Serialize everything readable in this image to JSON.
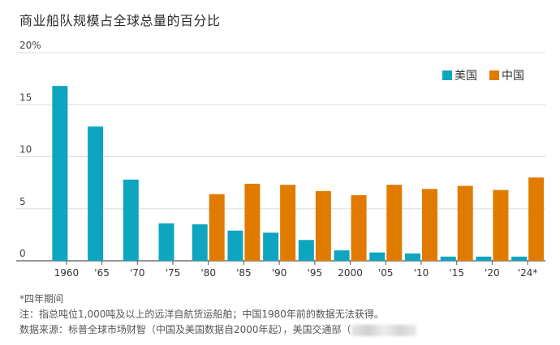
{
  "title": "商业船队规模占全球总量的百分比",
  "chart_data": {
    "type": "bar",
    "title": "商业船队规模占全球总量的百分比",
    "categories": [
      "1960",
      "'65",
      "'70",
      "'75",
      "'80",
      "'85",
      "'90",
      "'95",
      "2000",
      "'05",
      "'10",
      "'15",
      "'20",
      "'24*"
    ],
    "series": [
      {
        "name": "美国",
        "color": "#0ea5c0",
        "values": [
          16.8,
          12.9,
          7.8,
          3.6,
          3.5,
          2.9,
          2.7,
          2.0,
          1.0,
          0.8,
          0.7,
          0.4,
          0.4,
          0.4
        ]
      },
      {
        "name": "中国",
        "color": "#e07b00",
        "values": [
          null,
          null,
          null,
          null,
          6.4,
          7.4,
          7.3,
          6.7,
          6.3,
          7.3,
          6.9,
          7.2,
          6.8,
          8.0
        ]
      }
    ],
    "ylim": [
      0,
      20
    ],
    "yticks": [
      0,
      5,
      10,
      15,
      20
    ],
    "ytick_labels": [
      "0",
      "5",
      "10",
      "15",
      "20%"
    ],
    "grid": true,
    "legend": "top-right"
  },
  "notes": {
    "line1": "*四年期间",
    "line2": "注：指总吨位1,000吨及以上的远洋自航货运船舶；中国1980年前的数据无法获得。",
    "line3": "数据来源：标普全球市场财智（中国及美国数据自2000年起），美国交通部（"
  }
}
